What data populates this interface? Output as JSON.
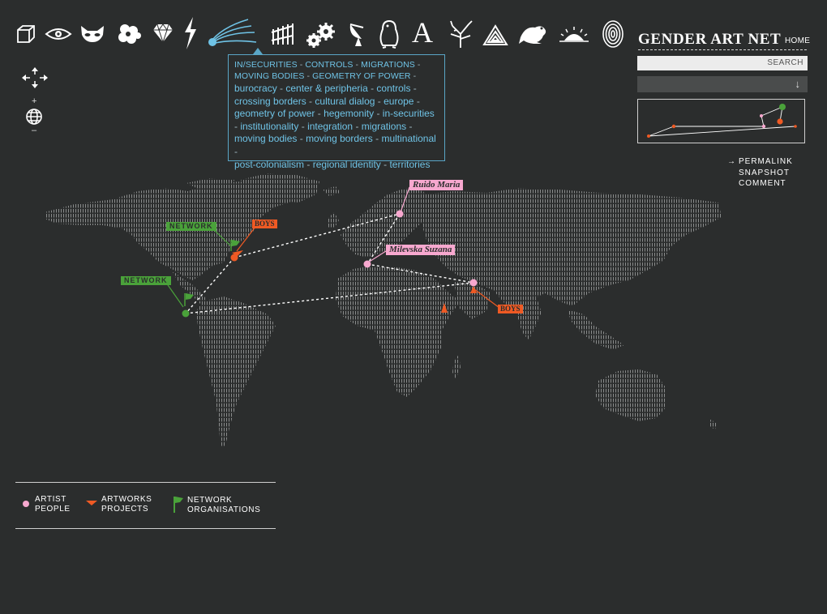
{
  "header": {
    "brand": "GENDER ART NET",
    "home_label": "HOME"
  },
  "icons": [
    "cube-icon",
    "eye-icon",
    "mask-icon",
    "hibiscus-icon",
    "diamond-icon",
    "lightning-icon",
    "comet-icon",
    "fence-icon",
    "gears-icon",
    "satellite-dish-icon",
    "penguin-icon",
    "letter-a-icon",
    "tree-branch-icon",
    "triangle-icon",
    "frog-icon",
    "sunrise-icon",
    "fingerprint-icon"
  ],
  "icon_letter": "A",
  "search": {
    "label": "SEARCH"
  },
  "dropdown": {
    "arrow": "↓"
  },
  "nav": {
    "zoom_in": "+",
    "zoom_out": "–"
  },
  "tooltip": {
    "head": [
      "IN/SECURITIES",
      "CONTROLS",
      "MIGRATIONS",
      "MOVING BODIES",
      "GEOMETRY OF POWER"
    ],
    "tags": [
      "burocracy",
      "center & peripheria",
      "controls",
      "crossing borders",
      "cultural dialog",
      "europe",
      "geometry of power",
      "hegemonity",
      "in-securities",
      "institutionality",
      "integration",
      "migrations",
      "moving bodies",
      "moving borders",
      "multinational",
      "post-colonialism",
      "regional identity",
      "territories"
    ]
  },
  "actions": {
    "arrow": "→",
    "items": [
      "PERMALINK",
      "SNAPSHOT",
      "COMMENT"
    ]
  },
  "map_labels": {
    "person_1": "Ruido Maria",
    "person_2": "Milevska Suzana",
    "network_1": "NETWORK",
    "network_2": "NETWORK",
    "artwork_1": "BOYS",
    "artwork_2": "BOYS"
  },
  "legend": {
    "artist": [
      "ARTIST",
      "PEOPLE"
    ],
    "artworks": [
      "ARTWORKS",
      "PROJECTS"
    ],
    "network": [
      "NETWORK",
      "ORGANISATIONS"
    ]
  },
  "colors": {
    "background": "#2b2d2d",
    "person": "#f7a8cf",
    "network": "#4aa23a",
    "artwork": "#ef5a24",
    "tooltip": "#6fc3e6"
  }
}
